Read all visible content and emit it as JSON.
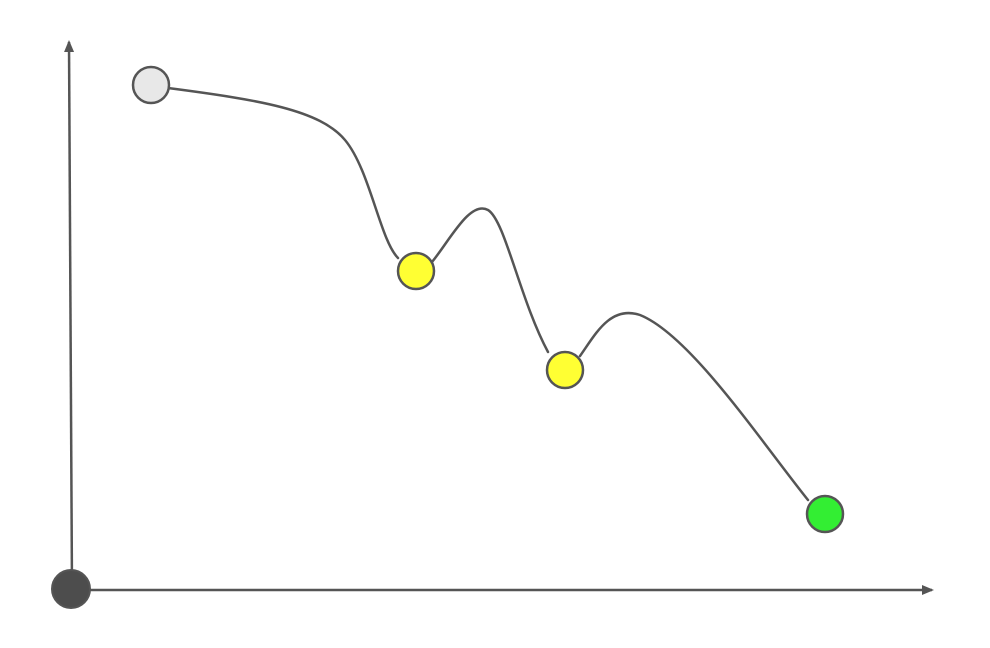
{
  "diagram": {
    "colors": {
      "stroke": "#555555",
      "origin_fill": "#4d4d4d",
      "start_fill": "#e8e8e8",
      "mid_fill": "#ffff33",
      "end_fill": "#33ee33",
      "background": "#ffffff"
    },
    "nodes": [
      {
        "name": "start-node",
        "state": "start"
      },
      {
        "name": "local-minimum-node-1",
        "state": "local-minimum"
      },
      {
        "name": "local-minimum-node-2",
        "state": "local-minimum"
      },
      {
        "name": "global-minimum-node",
        "state": "global-minimum"
      }
    ]
  }
}
